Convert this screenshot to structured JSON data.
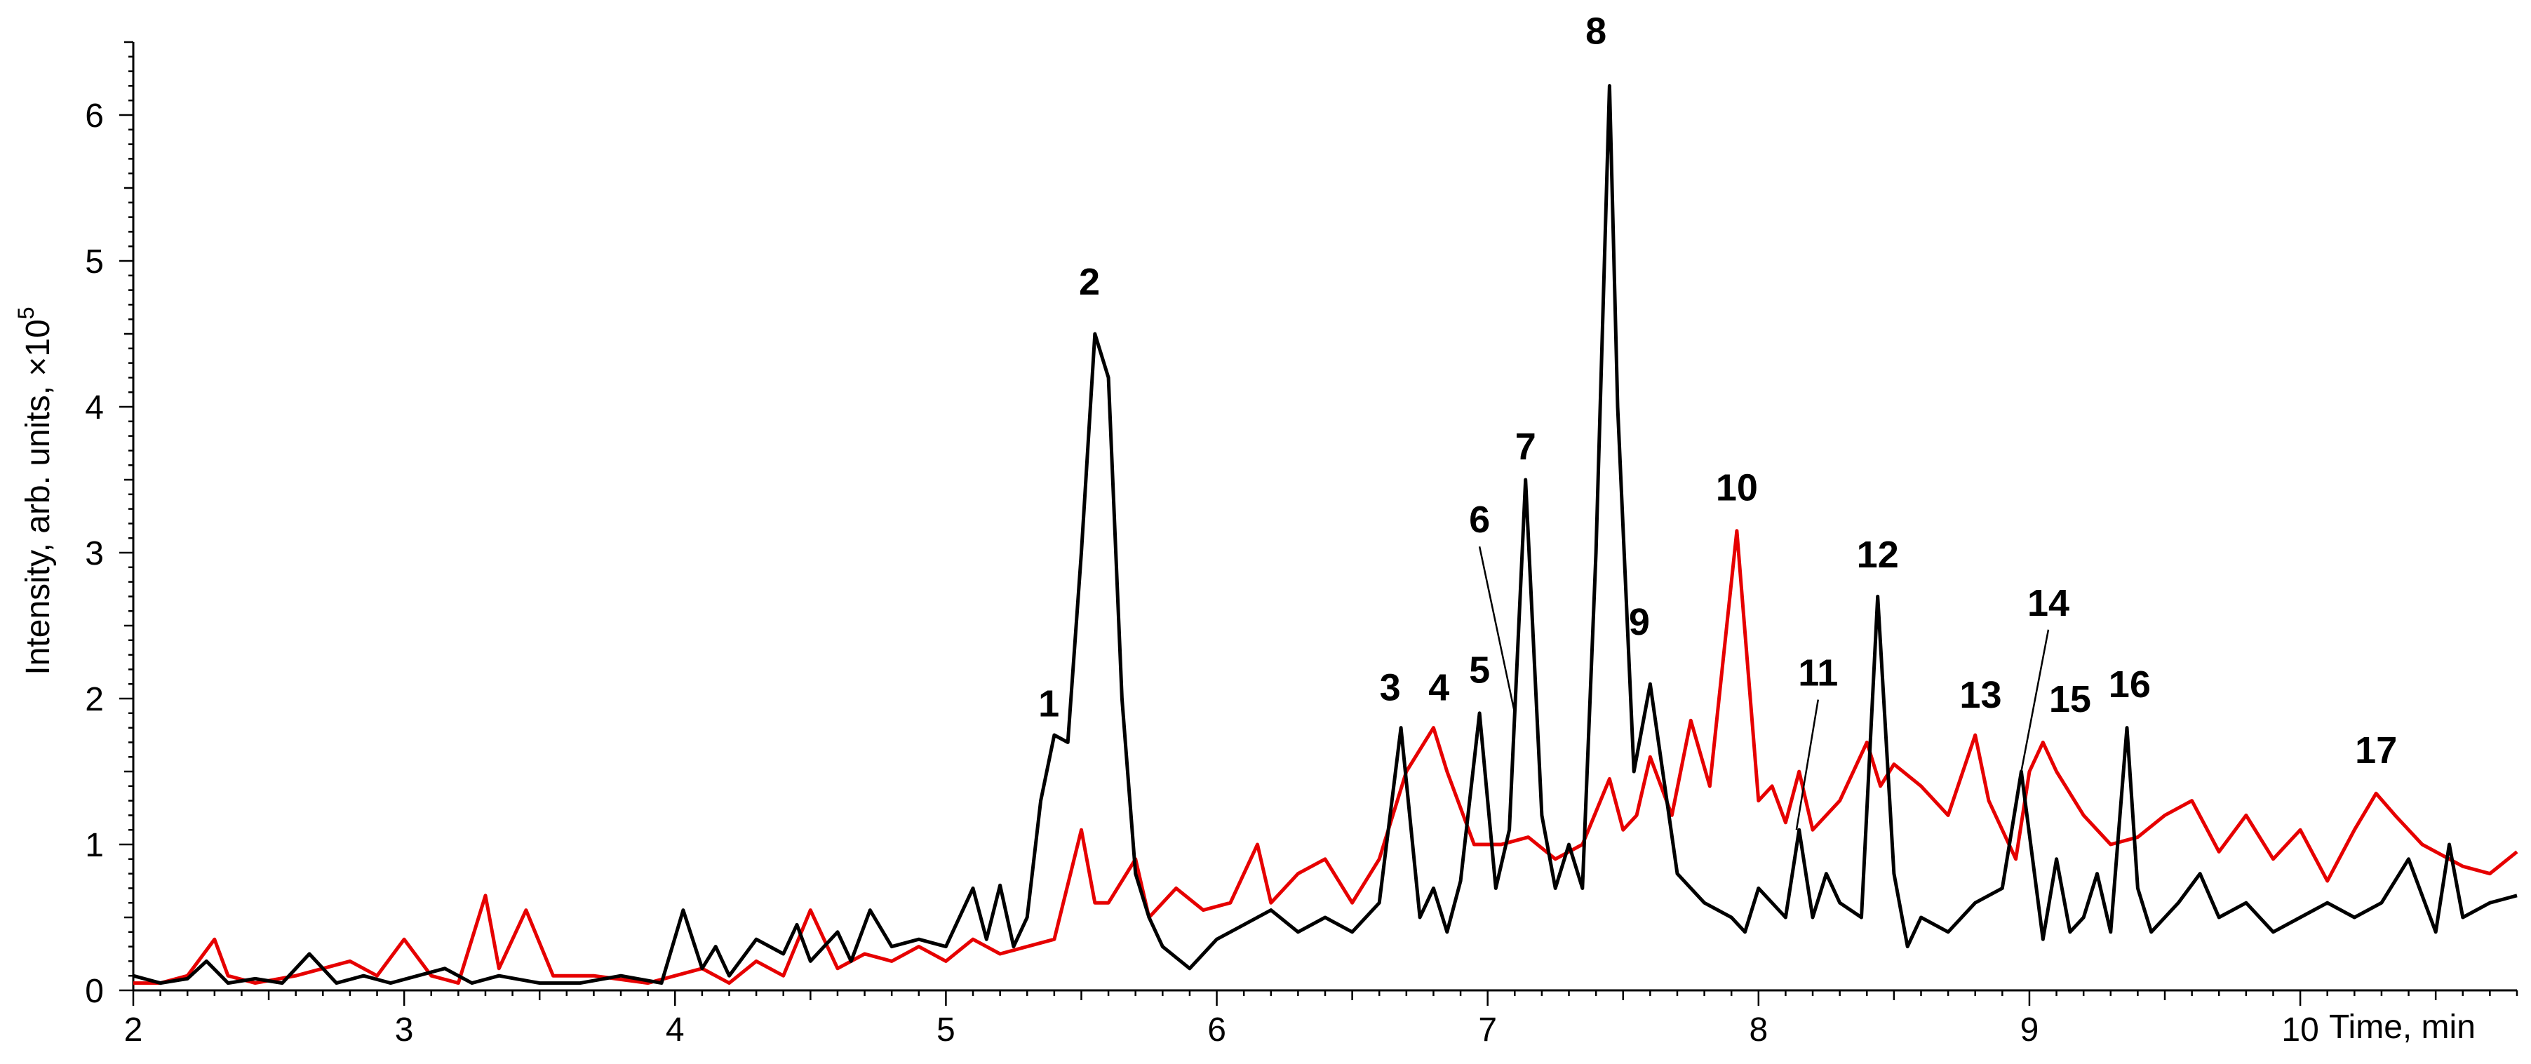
{
  "chart_data": {
    "type": "line",
    "xlabel": "Time, min",
    "ylabel_main": "Intensity, arb. units, ×10",
    "ylabel_exp": "5",
    "xlim": [
      2,
      10.8
    ],
    "ylim": [
      0,
      6.5
    ],
    "x_ticks": [
      2,
      3,
      4,
      5,
      6,
      7,
      8,
      9,
      10
    ],
    "y_ticks": [
      0,
      1,
      2,
      3,
      4,
      5,
      6
    ],
    "grid": false,
    "colors": {
      "black_series": "#000000",
      "red_series": "#e60000"
    },
    "series": [
      {
        "color": "#000000",
        "x": [
          2.0,
          2.1,
          2.2,
          2.27,
          2.35,
          2.45,
          2.55,
          2.65,
          2.75,
          2.85,
          2.95,
          3.05,
          3.15,
          3.25,
          3.35,
          3.5,
          3.65,
          3.8,
          3.95,
          4.03,
          4.1,
          4.15,
          4.2,
          4.3,
          4.4,
          4.45,
          4.5,
          4.6,
          4.65,
          4.72,
          4.8,
          4.9,
          5.0,
          5.1,
          5.15,
          5.2,
          5.25,
          5.3,
          5.35,
          5.4,
          5.45,
          5.5,
          5.55,
          5.6,
          5.65,
          5.7,
          5.75,
          5.8,
          5.9,
          6.0,
          6.1,
          6.2,
          6.3,
          6.4,
          6.5,
          6.6,
          6.68,
          6.75,
          6.8,
          6.85,
          6.9,
          6.97,
          7.03,
          7.08,
          7.14,
          7.2,
          7.25,
          7.3,
          7.35,
          7.4,
          7.45,
          7.48,
          7.54,
          7.6,
          7.7,
          7.8,
          7.9,
          7.95,
          8.0,
          8.1,
          8.15,
          8.2,
          8.25,
          8.3,
          8.38,
          8.44,
          8.5,
          8.55,
          8.6,
          8.7,
          8.8,
          8.9,
          8.97,
          9.05,
          9.1,
          9.15,
          9.2,
          9.25,
          9.3,
          9.36,
          9.4,
          9.45,
          9.55,
          9.63,
          9.7,
          9.8,
          9.9,
          10.0,
          10.1,
          10.2,
          10.3,
          10.4,
          10.5,
          10.55,
          10.6,
          10.7,
          10.8
        ],
        "y": [
          0.1,
          0.05,
          0.08,
          0.2,
          0.05,
          0.08,
          0.05,
          0.25,
          0.05,
          0.1,
          0.05,
          0.1,
          0.15,
          0.05,
          0.1,
          0.05,
          0.05,
          0.1,
          0.05,
          0.55,
          0.15,
          0.3,
          0.1,
          0.35,
          0.25,
          0.45,
          0.2,
          0.4,
          0.2,
          0.55,
          0.3,
          0.35,
          0.3,
          0.7,
          0.35,
          0.72,
          0.3,
          0.5,
          1.3,
          1.75,
          1.7,
          3.0,
          4.5,
          4.2,
          2.0,
          0.8,
          0.5,
          0.3,
          0.15,
          0.35,
          0.45,
          0.55,
          0.4,
          0.5,
          0.4,
          0.6,
          1.8,
          0.5,
          0.7,
          0.4,
          0.75,
          1.9,
          0.7,
          1.1,
          3.5,
          1.2,
          0.7,
          1.0,
          0.7,
          3.0,
          6.2,
          4.0,
          1.5,
          2.1,
          0.8,
          0.6,
          0.5,
          0.4,
          0.7,
          0.5,
          1.1,
          0.5,
          0.8,
          0.6,
          0.5,
          2.7,
          0.8,
          0.3,
          0.5,
          0.4,
          0.6,
          0.7,
          1.5,
          0.35,
          0.9,
          0.4,
          0.5,
          0.8,
          0.4,
          1.8,
          0.7,
          0.4,
          0.6,
          0.8,
          0.5,
          0.6,
          0.4,
          0.5,
          0.6,
          0.5,
          0.6,
          0.9,
          0.4,
          1.0,
          0.5,
          0.6,
          0.65
        ]
      },
      {
        "color": "#e60000",
        "x": [
          2.0,
          2.1,
          2.2,
          2.3,
          2.35,
          2.45,
          2.6,
          2.8,
          2.9,
          3.0,
          3.1,
          3.2,
          3.3,
          3.35,
          3.45,
          3.55,
          3.7,
          3.9,
          4.0,
          4.1,
          4.2,
          4.3,
          4.4,
          4.5,
          4.6,
          4.7,
          4.8,
          4.9,
          5.0,
          5.1,
          5.2,
          5.3,
          5.4,
          5.5,
          5.55,
          5.6,
          5.7,
          5.75,
          5.85,
          5.95,
          6.05,
          6.15,
          6.2,
          6.3,
          6.4,
          6.5,
          6.6,
          6.7,
          6.8,
          6.85,
          6.95,
          7.05,
          7.15,
          7.25,
          7.35,
          7.45,
          7.5,
          7.55,
          7.6,
          7.68,
          7.75,
          7.82,
          7.92,
          8.0,
          8.05,
          8.1,
          8.15,
          8.2,
          8.3,
          8.4,
          8.45,
          8.5,
          8.6,
          8.7,
          8.8,
          8.85,
          8.95,
          9.0,
          9.05,
          9.1,
          9.2,
          9.3,
          9.4,
          9.5,
          9.6,
          9.7,
          9.8,
          9.9,
          10.0,
          10.1,
          10.2,
          10.28,
          10.35,
          10.45,
          10.6,
          10.7,
          10.8
        ],
        "y": [
          0.05,
          0.05,
          0.1,
          0.35,
          0.1,
          0.05,
          0.1,
          0.2,
          0.1,
          0.35,
          0.1,
          0.05,
          0.65,
          0.15,
          0.55,
          0.1,
          0.1,
          0.05,
          0.1,
          0.15,
          0.05,
          0.2,
          0.1,
          0.55,
          0.15,
          0.25,
          0.2,
          0.3,
          0.2,
          0.35,
          0.25,
          0.3,
          0.35,
          1.1,
          0.6,
          0.6,
          0.9,
          0.5,
          0.7,
          0.55,
          0.6,
          1.0,
          0.6,
          0.8,
          0.9,
          0.6,
          0.9,
          1.5,
          1.8,
          1.5,
          1.0,
          1.0,
          1.05,
          0.9,
          1.0,
          1.45,
          1.1,
          1.2,
          1.6,
          1.2,
          1.85,
          1.4,
          3.15,
          1.3,
          1.4,
          1.15,
          1.5,
          1.1,
          1.3,
          1.7,
          1.4,
          1.55,
          1.4,
          1.2,
          1.75,
          1.3,
          0.9,
          1.5,
          1.7,
          1.5,
          1.2,
          1.0,
          1.05,
          1.2,
          1.3,
          0.95,
          1.2,
          0.9,
          1.1,
          0.75,
          1.1,
          1.35,
          1.2,
          1.0,
          0.85,
          0.8,
          0.95
        ]
      }
    ],
    "annotations": [
      {
        "label": "1",
        "x": 5.38,
        "y": 1.84,
        "target": [
          5.4,
          1.75
        ],
        "leader": false
      },
      {
        "label": "2",
        "x": 5.53,
        "y": 4.73,
        "target": [
          5.55,
          4.5
        ],
        "leader": false
      },
      {
        "label": "3",
        "x": 6.64,
        "y": 1.95,
        "target": [
          6.68,
          1.8
        ],
        "leader": false
      },
      {
        "label": "4",
        "x": 6.82,
        "y": 1.95,
        "target": [
          6.8,
          1.8
        ],
        "leader": false
      },
      {
        "label": "5",
        "x": 6.97,
        "y": 2.07,
        "target": [
          6.97,
          1.9
        ],
        "leader": false
      },
      {
        "label": "6",
        "x": 6.97,
        "y": 3.1,
        "target": [
          7.1,
          1.9
        ],
        "leader": true
      },
      {
        "label": "7",
        "x": 7.14,
        "y": 3.6,
        "target": [
          7.14,
          3.5
        ],
        "leader": false
      },
      {
        "label": "8",
        "x": 7.4,
        "y": 6.45,
        "target": [
          7.4,
          6.2
        ],
        "leader": false
      },
      {
        "label": "9",
        "x": 7.56,
        "y": 2.4,
        "target": [
          7.54,
          2.1
        ],
        "leader": false
      },
      {
        "label": "10",
        "x": 7.92,
        "y": 3.32,
        "target": [
          7.92,
          3.15
        ],
        "leader": false
      },
      {
        "label": "11",
        "x": 8.22,
        "y": 2.05,
        "target": [
          8.14,
          1.1
        ],
        "leader": true
      },
      {
        "label": "12",
        "x": 8.44,
        "y": 2.86,
        "target": [
          8.44,
          2.7
        ],
        "leader": false
      },
      {
        "label": "13",
        "x": 8.82,
        "y": 1.9,
        "target": [
          8.8,
          1.75
        ],
        "leader": false
      },
      {
        "label": "14",
        "x": 9.07,
        "y": 2.53,
        "target": [
          8.97,
          1.5
        ],
        "leader": true
      },
      {
        "label": "15",
        "x": 9.15,
        "y": 1.87,
        "target": [
          9.1,
          1.7
        ],
        "leader": false
      },
      {
        "label": "16",
        "x": 9.37,
        "y": 1.97,
        "target": [
          9.36,
          1.8
        ],
        "leader": false
      },
      {
        "label": "17",
        "x": 10.28,
        "y": 1.52,
        "target": [
          10.28,
          1.35
        ],
        "leader": false
      }
    ]
  }
}
